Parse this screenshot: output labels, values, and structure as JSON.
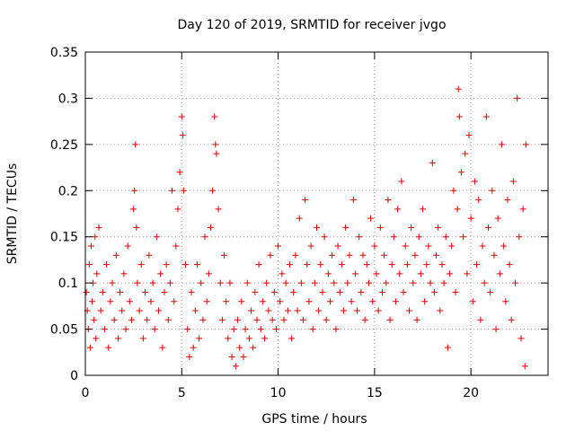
{
  "chart_data": {
    "type": "scatter",
    "title": "Day 120 of 2019, SRMTID for receiver jvgo",
    "xlabel": "GPS time / hours",
    "ylabel": "SRMTID / TECUs",
    "xlim": [
      0,
      24
    ],
    "ylim": [
      0,
      0.35
    ],
    "xticks": [
      0,
      5,
      10,
      15,
      20
    ],
    "xtick_labels": [
      "0",
      "5",
      "10",
      "15",
      "20"
    ],
    "yticks": [
      0,
      0.05,
      0.1,
      0.15,
      0.2,
      0.25,
      0.3,
      0.35
    ],
    "ytick_labels": [
      "0",
      "0.05",
      "0.1",
      "0.15",
      "0.2",
      "0.25",
      "0.3",
      "0.35"
    ],
    "grid": true,
    "marker": "+",
    "color": "#dd0000",
    "series": [
      {
        "name": "SRMTID",
        "points": [
          [
            0.05,
            0.09
          ],
          [
            0.1,
            0.07
          ],
          [
            0.15,
            0.05
          ],
          [
            0.2,
            0.12
          ],
          [
            0.25,
            0.03
          ],
          [
            0.3,
            0.14
          ],
          [
            0.35,
            0.08
          ],
          [
            0.4,
            0.1
          ],
          [
            0.45,
            0.06
          ],
          [
            0.5,
            0.15
          ],
          [
            0.55,
            0.04
          ],
          [
            0.6,
            0.11
          ],
          [
            0.7,
            0.16
          ],
          [
            0.8,
            0.07
          ],
          [
            0.9,
            0.09
          ],
          [
            1.0,
            0.05
          ],
          [
            1.1,
            0.12
          ],
          [
            1.2,
            0.03
          ],
          [
            1.3,
            0.08
          ],
          [
            1.4,
            0.1
          ],
          [
            1.5,
            0.06
          ],
          [
            1.6,
            0.13
          ],
          [
            1.7,
            0.04
          ],
          [
            1.8,
            0.09
          ],
          [
            1.9,
            0.07
          ],
          [
            2.0,
            0.11
          ],
          [
            2.1,
            0.05
          ],
          [
            2.2,
            0.14
          ],
          [
            2.3,
            0.08
          ],
          [
            2.4,
            0.06
          ],
          [
            2.5,
            0.18
          ],
          [
            2.55,
            0.2
          ],
          [
            2.6,
            0.25
          ],
          [
            2.65,
            0.16
          ],
          [
            2.7,
            0.1
          ],
          [
            2.8,
            0.07
          ],
          [
            2.9,
            0.12
          ],
          [
            3.0,
            0.04
          ],
          [
            3.1,
            0.09
          ],
          [
            3.2,
            0.06
          ],
          [
            3.3,
            0.13
          ],
          [
            3.4,
            0.08
          ],
          [
            3.5,
            0.1
          ],
          [
            3.6,
            0.05
          ],
          [
            3.7,
            0.15
          ],
          [
            3.8,
            0.07
          ],
          [
            3.9,
            0.11
          ],
          [
            4.0,
            0.03
          ],
          [
            4.1,
            0.09
          ],
          [
            4.2,
            0.12
          ],
          [
            4.3,
            0.06
          ],
          [
            4.4,
            0.1
          ],
          [
            4.5,
            0.2
          ],
          [
            4.6,
            0.08
          ],
          [
            4.7,
            0.14
          ],
          [
            4.8,
            0.18
          ],
          [
            4.9,
            0.22
          ],
          [
            5.0,
            0.28
          ],
          [
            5.05,
            0.26
          ],
          [
            5.1,
            0.2
          ],
          [
            5.2,
            0.12
          ],
          [
            5.3,
            0.05
          ],
          [
            5.4,
            0.02
          ],
          [
            5.5,
            0.09
          ],
          [
            5.6,
            0.03
          ],
          [
            5.7,
            0.07
          ],
          [
            5.8,
            0.12
          ],
          [
            5.9,
            0.04
          ],
          [
            6.0,
            0.1
          ],
          [
            6.1,
            0.06
          ],
          [
            6.2,
            0.15
          ],
          [
            6.3,
            0.08
          ],
          [
            6.4,
            0.11
          ],
          [
            6.5,
            0.16
          ],
          [
            6.6,
            0.2
          ],
          [
            6.7,
            0.28
          ],
          [
            6.75,
            0.25
          ],
          [
            6.8,
            0.24
          ],
          [
            6.9,
            0.18
          ],
          [
            7.0,
            0.1
          ],
          [
            7.1,
            0.06
          ],
          [
            7.2,
            0.13
          ],
          [
            7.3,
            0.08
          ],
          [
            7.4,
            0.04
          ],
          [
            7.5,
            0.1
          ],
          [
            7.6,
            0.02
          ],
          [
            7.7,
            0.05
          ],
          [
            7.8,
            0.01
          ],
          [
            7.9,
            0.06
          ],
          [
            8.0,
            0.03
          ],
          [
            8.1,
            0.08
          ],
          [
            8.2,
            0.02
          ],
          [
            8.3,
            0.05
          ],
          [
            8.4,
            0.1
          ],
          [
            8.5,
            0.04
          ],
          [
            8.6,
            0.07
          ],
          [
            8.7,
            0.03
          ],
          [
            8.8,
            0.09
          ],
          [
            8.9,
            0.06
          ],
          [
            9.0,
            0.12
          ],
          [
            9.1,
            0.05
          ],
          [
            9.2,
            0.08
          ],
          [
            9.3,
            0.04
          ],
          [
            9.4,
            0.1
          ],
          [
            9.5,
            0.07
          ],
          [
            9.6,
            0.13
          ],
          [
            9.7,
            0.06
          ],
          [
            9.8,
            0.09
          ],
          [
            9.9,
            0.05
          ],
          [
            10.0,
            0.14
          ],
          [
            10.1,
            0.08
          ],
          [
            10.2,
            0.11
          ],
          [
            10.3,
            0.06
          ],
          [
            10.4,
            0.1
          ],
          [
            10.5,
            0.07
          ],
          [
            10.6,
            0.12
          ],
          [
            10.7,
            0.04
          ],
          [
            10.8,
            0.09
          ],
          [
            10.9,
            0.13
          ],
          [
            11.0,
            0.07
          ],
          [
            11.1,
            0.17
          ],
          [
            11.2,
            0.1
          ],
          [
            11.3,
            0.06
          ],
          [
            11.4,
            0.19
          ],
          [
            11.5,
            0.12
          ],
          [
            11.6,
            0.08
          ],
          [
            11.7,
            0.14
          ],
          [
            11.8,
            0.05
          ],
          [
            11.9,
            0.1
          ],
          [
            12.0,
            0.16
          ],
          [
            12.1,
            0.07
          ],
          [
            12.2,
            0.12
          ],
          [
            12.3,
            0.09
          ],
          [
            12.4,
            0.15
          ],
          [
            12.5,
            0.06
          ],
          [
            12.6,
            0.11
          ],
          [
            12.7,
            0.08
          ],
          [
            12.8,
            0.13
          ],
          [
            12.9,
            0.1
          ],
          [
            13.0,
            0.05
          ],
          [
            13.1,
            0.14
          ],
          [
            13.2,
            0.09
          ],
          [
            13.3,
            0.12
          ],
          [
            13.4,
            0.07
          ],
          [
            13.5,
            0.16
          ],
          [
            13.6,
            0.1
          ],
          [
            13.7,
            0.13
          ],
          [
            13.8,
            0.08
          ],
          [
            13.9,
            0.19
          ],
          [
            14.0,
            0.11
          ],
          [
            14.1,
            0.07
          ],
          [
            14.2,
            0.15
          ],
          [
            14.3,
            0.09
          ],
          [
            14.4,
            0.13
          ],
          [
            14.5,
            0.06
          ],
          [
            14.6,
            0.12
          ],
          [
            14.7,
            0.1
          ],
          [
            14.8,
            0.17
          ],
          [
            14.9,
            0.08
          ],
          [
            15.0,
            0.14
          ],
          [
            15.1,
            0.11
          ],
          [
            15.2,
            0.07
          ],
          [
            15.3,
            0.16
          ],
          [
            15.4,
            0.09
          ],
          [
            15.5,
            0.13
          ],
          [
            15.6,
            0.1
          ],
          [
            15.7,
            0.19
          ],
          [
            15.8,
            0.06
          ],
          [
            15.9,
            0.12
          ],
          [
            16.0,
            0.15
          ],
          [
            16.1,
            0.08
          ],
          [
            16.2,
            0.18
          ],
          [
            16.3,
            0.11
          ],
          [
            16.4,
            0.21
          ],
          [
            16.5,
            0.09
          ],
          [
            16.6,
            0.14
          ],
          [
            16.7,
            0.12
          ],
          [
            16.8,
            0.07
          ],
          [
            16.9,
            0.16
          ],
          [
            17.0,
            0.1
          ],
          [
            17.1,
            0.13
          ],
          [
            17.2,
            0.06
          ],
          [
            17.3,
            0.15
          ],
          [
            17.4,
            0.11
          ],
          [
            17.5,
            0.18
          ],
          [
            17.6,
            0.08
          ],
          [
            17.7,
            0.12
          ],
          [
            17.8,
            0.14
          ],
          [
            17.9,
            0.1
          ],
          [
            18.0,
            0.23
          ],
          [
            18.1,
            0.09
          ],
          [
            18.2,
            0.13
          ],
          [
            18.3,
            0.16
          ],
          [
            18.4,
            0.07
          ],
          [
            18.5,
            0.12
          ],
          [
            18.6,
            0.1
          ],
          [
            18.7,
            0.15
          ],
          [
            18.8,
            0.03
          ],
          [
            18.9,
            0.11
          ],
          [
            19.0,
            0.14
          ],
          [
            19.1,
            0.2
          ],
          [
            19.2,
            0.09
          ],
          [
            19.3,
            0.18
          ],
          [
            19.35,
            0.31
          ],
          [
            19.4,
            0.28
          ],
          [
            19.5,
            0.22
          ],
          [
            19.6,
            0.15
          ],
          [
            19.7,
            0.24
          ],
          [
            19.8,
            0.11
          ],
          [
            19.9,
            0.26
          ],
          [
            20.0,
            0.17
          ],
          [
            20.1,
            0.08
          ],
          [
            20.2,
            0.21
          ],
          [
            20.3,
            0.12
          ],
          [
            20.4,
            0.19
          ],
          [
            20.5,
            0.06
          ],
          [
            20.6,
            0.14
          ],
          [
            20.7,
            0.1
          ],
          [
            20.8,
            0.28
          ],
          [
            20.9,
            0.16
          ],
          [
            21.0,
            0.09
          ],
          [
            21.1,
            0.2
          ],
          [
            21.2,
            0.13
          ],
          [
            21.3,
            0.05
          ],
          [
            21.4,
            0.17
          ],
          [
            21.5,
            0.11
          ],
          [
            21.6,
            0.25
          ],
          [
            21.7,
            0.14
          ],
          [
            21.8,
            0.08
          ],
          [
            21.9,
            0.19
          ],
          [
            22.0,
            0.12
          ],
          [
            22.1,
            0.06
          ],
          [
            22.2,
            0.21
          ],
          [
            22.3,
            0.1
          ],
          [
            22.4,
            0.3
          ],
          [
            22.5,
            0.15
          ],
          [
            22.6,
            0.04
          ],
          [
            22.7,
            0.18
          ],
          [
            22.8,
            0.01
          ],
          [
            22.85,
            0.25
          ]
        ]
      }
    ]
  }
}
